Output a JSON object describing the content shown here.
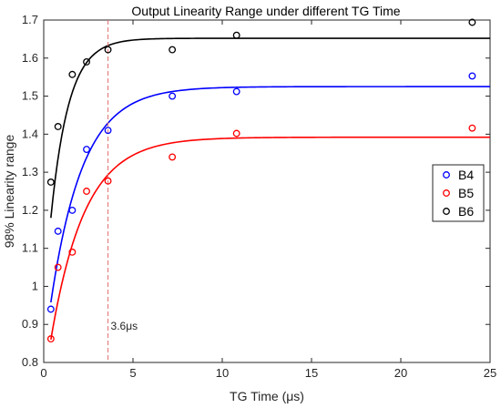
{
  "chart_data": {
    "type": "scatter",
    "title": "Output Linearity Range under different TG Time",
    "xlabel": "TG Time (μs)",
    "ylabel": "98% Linearity range",
    "xlim": [
      0,
      25
    ],
    "ylim": [
      0.8,
      1.7
    ],
    "xticks": [
      "0",
      "5",
      "10",
      "15",
      "20",
      "25"
    ],
    "yticks": [
      "0.8",
      "0.9",
      "1",
      "1.1",
      "1.2",
      "1.3",
      "1.4",
      "1.5",
      "1.6",
      "1.7"
    ],
    "grid": false,
    "legend_position": "right",
    "series": [
      {
        "name": "B4",
        "color": "#0000ff",
        "points": [
          [
            0.4,
            0.94
          ],
          [
            0.8,
            1.145
          ],
          [
            1.6,
            1.2
          ],
          [
            2.4,
            1.36
          ],
          [
            3.6,
            1.41
          ],
          [
            7.2,
            1.5
          ],
          [
            10.8,
            1.512
          ],
          [
            24,
            1.553
          ]
        ],
        "fit": {
          "ymax": 1.525,
          "y0": 0.958,
          "tau": 1.8,
          "xstart": 0.4,
          "xend": 25
        }
      },
      {
        "name": "B5",
        "color": "#ff0000",
        "points": [
          [
            0.4,
            0.862
          ],
          [
            0.8,
            1.05
          ],
          [
            1.6,
            1.09
          ],
          [
            2.4,
            1.25
          ],
          [
            3.6,
            1.277
          ],
          [
            7.2,
            1.34
          ],
          [
            10.8,
            1.402
          ],
          [
            24,
            1.416
          ]
        ],
        "fit": {
          "ymax": 1.392,
          "y0": 0.86,
          "tau": 1.9,
          "xstart": 0.4,
          "xend": 25
        }
      },
      {
        "name": "B6",
        "color": "#000000",
        "points": [
          [
            0.4,
            1.274
          ],
          [
            0.8,
            1.42
          ],
          [
            1.6,
            1.557
          ],
          [
            2.4,
            1.59
          ],
          [
            3.6,
            1.622
          ],
          [
            7.2,
            1.622
          ],
          [
            10.8,
            1.66
          ],
          [
            24,
            1.694
          ]
        ],
        "fit": {
          "ymax": 1.652,
          "y0": 1.18,
          "tau": 1.0,
          "xstart": 0.4,
          "xend": 25
        }
      }
    ],
    "vline": {
      "x": 3.6,
      "label": "3.6μs",
      "color": "#e07070"
    }
  }
}
